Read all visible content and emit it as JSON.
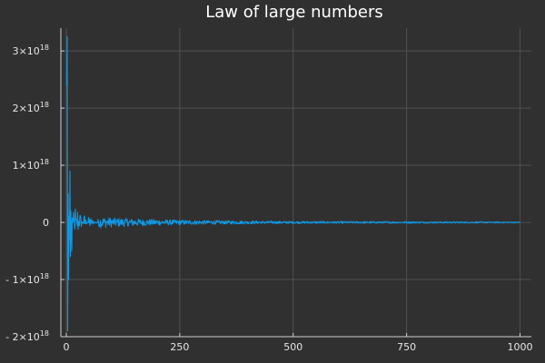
{
  "chart_data": {
    "type": "line",
    "title": "Law of large numbers",
    "xlabel": "",
    "ylabel": "",
    "xlim": [
      -12,
      1025
    ],
    "ylim": [
      -2e+18,
      3.4e+18
    ],
    "grid": true,
    "legend": "none",
    "colors": {
      "background": "#303030",
      "series": "#0e99e6",
      "grid": "#505050",
      "axis": "#d0d0d0",
      "text": "#e6e6e6"
    },
    "x_ticks": [
      {
        "value": 0,
        "label": "0"
      },
      {
        "value": 250,
        "label": "250"
      },
      {
        "value": 500,
        "label": "500"
      },
      {
        "value": 750,
        "label": "750"
      },
      {
        "value": 1000,
        "label": "1000"
      }
    ],
    "y_ticks": [
      {
        "value": -2e+18,
        "base": "- 2×10",
        "exp": "18"
      },
      {
        "value": -1e+18,
        "base": "- 1×10",
        "exp": "18"
      },
      {
        "value": 0,
        "base": "0",
        "exp": ""
      },
      {
        "value": 1e+18,
        "base": "1×10",
        "exp": "18"
      },
      {
        "value": 2e+18,
        "base": "2×10",
        "exp": "18"
      },
      {
        "value": 3e+18,
        "base": "3×10",
        "exp": "18"
      }
    ],
    "series": [
      {
        "envelope_points": [
          {
            "x": 1,
            "y": 2.4e+18
          },
          {
            "x": 2,
            "y": 3.25e+18
          },
          {
            "x": 3,
            "y": -1.9e+18
          },
          {
            "x": 4,
            "y": 5e+17
          },
          {
            "x": 5,
            "y": -1e+18
          },
          {
            "x": 6,
            "y": 1e+17
          },
          {
            "x": 7,
            "y": -3e+17
          },
          {
            "x": 8,
            "y": 9e+17
          },
          {
            "x": 9,
            "y": -6e+17
          },
          {
            "x": 10,
            "y": 2e+17
          },
          {
            "x": 12,
            "y": -5e+17
          },
          {
            "x": 15,
            "y": 3e+17
          },
          {
            "x": 20,
            "y": -3e+17
          },
          {
            "x": 25,
            "y": 3e+17
          },
          {
            "x": 30,
            "y": -2e+17
          },
          {
            "x": 40,
            "y": 1.5e+17
          },
          {
            "x": 50,
            "y": -1.2e+17
          },
          {
            "x": 75,
            "y": 1e+17
          },
          {
            "x": 100,
            "y": 8e+16
          },
          {
            "x": 200,
            "y": 5e+16
          },
          {
            "x": 300,
            "y": 3.5e+16
          },
          {
            "x": 500,
            "y": 2e+16
          },
          {
            "x": 750,
            "y": 1.5e+16
          },
          {
            "x": 1000,
            "y": 1e+16
          }
        ]
      }
    ]
  }
}
